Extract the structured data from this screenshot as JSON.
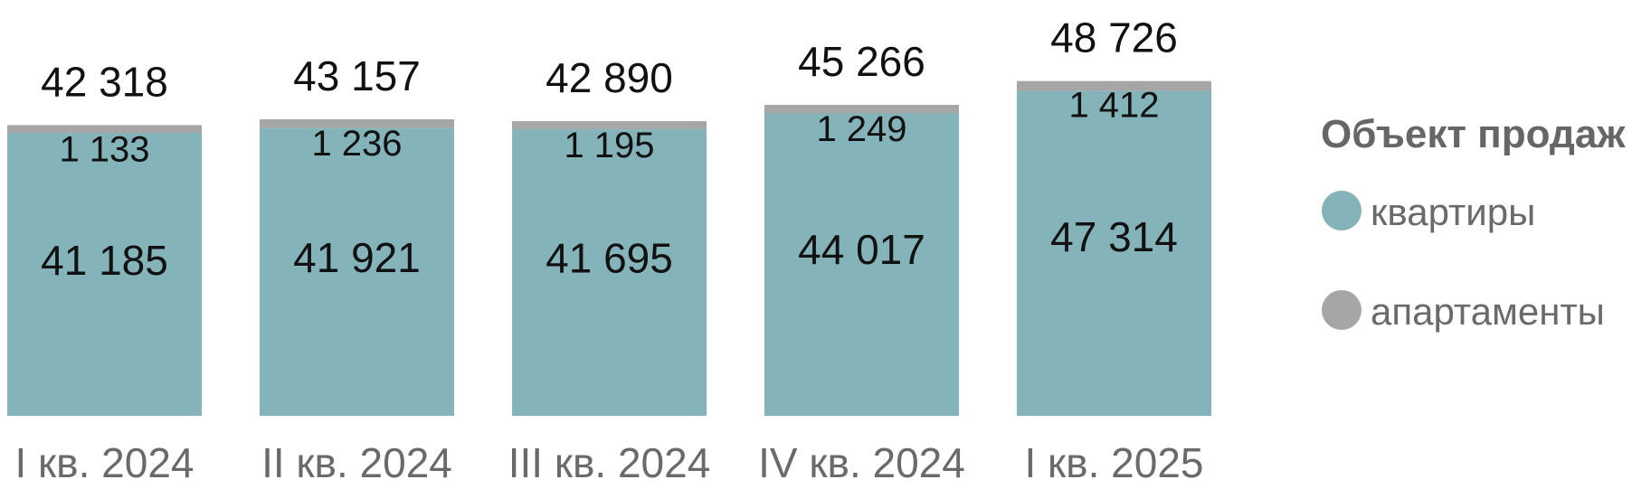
{
  "chart_data": {
    "type": "bar",
    "stacked": true,
    "categories": [
      "I кв. 2024",
      "II кв. 2024",
      "III кв. 2024",
      "IV кв. 2024",
      "I кв. 2025"
    ],
    "series": [
      {
        "name": "квартиры",
        "values": [
          41185,
          41921,
          41695,
          44017,
          47314
        ],
        "color": "#84b3ba"
      },
      {
        "name": "апартаменты",
        "values": [
          1133,
          1236,
          1195,
          1249,
          1412
        ],
        "color": "#a6a6a6"
      }
    ],
    "series_labels": [
      [
        "41 185",
        "41 921",
        "41 695",
        "44 017",
        "47 314"
      ],
      [
        "1 133",
        "1 236",
        "1 195",
        "1 249",
        "1 412"
      ]
    ],
    "totals": [
      42318,
      43157,
      42890,
      45266,
      48726
    ],
    "total_labels": [
      "42 318",
      "43 157",
      "42 890",
      "45 266",
      "48 726"
    ],
    "legend": {
      "title": "Объект продаж",
      "position": "right"
    },
    "grid": false
  }
}
